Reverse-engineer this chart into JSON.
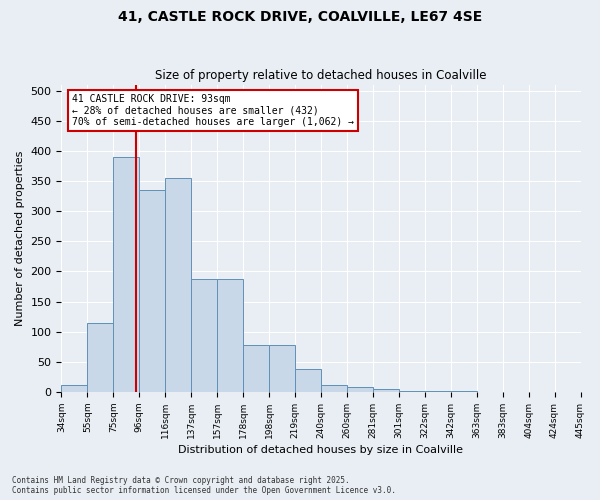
{
  "title": "41, CASTLE ROCK DRIVE, COALVILLE, LE67 4SE",
  "subtitle": "Size of property relative to detached houses in Coalville",
  "xlabel": "Distribution of detached houses by size in Coalville",
  "ylabel": "Number of detached properties",
  "bar_color": "#c8d8e8",
  "bar_edge_color": "#6090b8",
  "background_color": "#e8eef4",
  "grid_color": "#ffffff",
  "bins": [
    "34sqm",
    "55sqm",
    "75sqm",
    "96sqm",
    "116sqm",
    "137sqm",
    "157sqm",
    "178sqm",
    "198sqm",
    "219sqm",
    "240sqm",
    "260sqm",
    "281sqm",
    "301sqm",
    "322sqm",
    "342sqm",
    "363sqm",
    "383sqm",
    "404sqm",
    "424sqm",
    "445sqm"
  ],
  "values": [
    12,
    115,
    390,
    335,
    355,
    188,
    188,
    78,
    78,
    38,
    12,
    8,
    5,
    2,
    1,
    1,
    0,
    0,
    0,
    0
  ],
  "property_line_x": 93,
  "bin_edges": [
    34,
    55,
    75,
    96,
    116,
    137,
    157,
    178,
    198,
    219,
    240,
    260,
    281,
    301,
    322,
    342,
    363,
    383,
    404,
    424,
    445
  ],
  "annotation_title": "41 CASTLE ROCK DRIVE: 93sqm",
  "annotation_line1": "← 28% of detached houses are smaller (432)",
  "annotation_line2": "70% of semi-detached houses are larger (1,062) →",
  "annotation_box_color": "#ffffff",
  "annotation_box_edge": "#cc0000",
  "vline_color": "#cc0000",
  "ylim": [
    0,
    510
  ],
  "yticks": [
    0,
    50,
    100,
    150,
    200,
    250,
    300,
    350,
    400,
    450,
    500
  ],
  "footer1": "Contains HM Land Registry data © Crown copyright and database right 2025.",
  "footer2": "Contains public sector information licensed under the Open Government Licence v3.0."
}
